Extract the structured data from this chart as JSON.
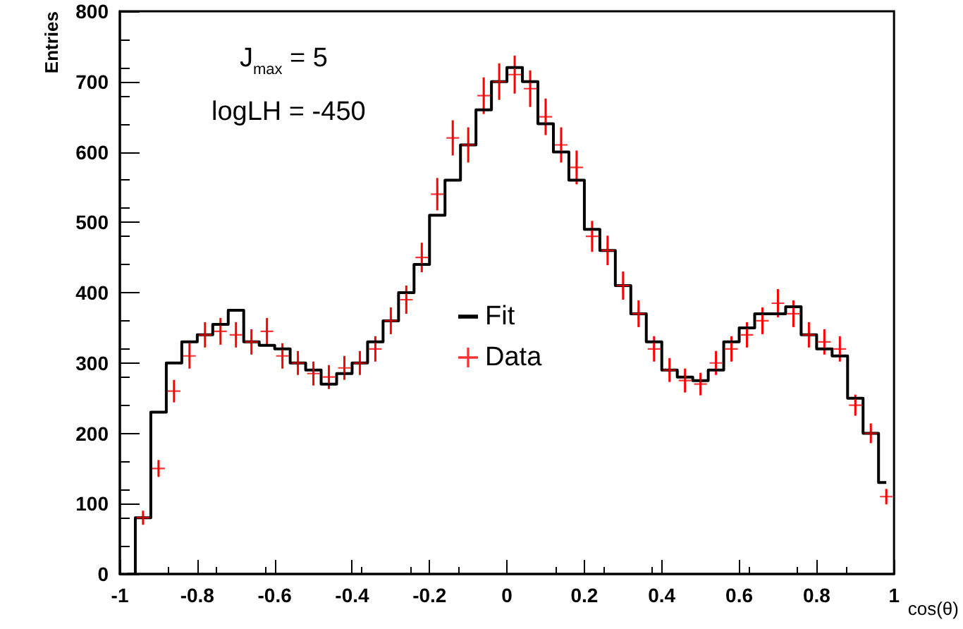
{
  "chart_data": {
    "type": "step",
    "xlabel": "cos(θ)",
    "ylabel": "Entries",
    "annotations": [
      "J$_{max}$ = 5",
      "logLH = -450"
    ],
    "x": [
      -0.98,
      -0.94,
      -0.9,
      -0.86,
      -0.82,
      -0.78,
      -0.74,
      -0.7,
      -0.66,
      -0.62,
      -0.58,
      -0.54,
      -0.5,
      -0.46,
      -0.42,
      -0.38,
      -0.34,
      -0.3,
      -0.26,
      -0.22,
      -0.18,
      -0.14,
      -0.1,
      -0.06,
      -0.02,
      0.02,
      0.06,
      0.1,
      0.14,
      0.18,
      0.22,
      0.26,
      0.3,
      0.34,
      0.38,
      0.42,
      0.46,
      0.5,
      0.54,
      0.58,
      0.62,
      0.66,
      0.7,
      0.74,
      0.78,
      0.82,
      0.86,
      0.9,
      0.94,
      0.98
    ],
    "series": [
      {
        "name": "Fit",
        "color": "#000000",
        "values": [
          0,
          80,
          230,
          300,
          330,
          340,
          355,
          375,
          330,
          325,
          320,
          300,
          290,
          270,
          285,
          300,
          330,
          360,
          400,
          440,
          510,
          560,
          610,
          660,
          700,
          720,
          700,
          640,
          600,
          560,
          490,
          460,
          410,
          370,
          330,
          290,
          280,
          275,
          290,
          330,
          350,
          370,
          370,
          380,
          340,
          320,
          310,
          250,
          200,
          130
        ]
      },
      {
        "name": "Data",
        "type": "scatter",
        "marker": "cross",
        "color": "#ff0000",
        "values": [
          null,
          80,
          150,
          260,
          310,
          340,
          345,
          340,
          330,
          345,
          310,
          300,
          285,
          280,
          293,
          300,
          320,
          360,
          390,
          450,
          540,
          620,
          610,
          680,
          700,
          710,
          690,
          650,
          610,
          578,
          480,
          460,
          410,
          370,
          320,
          290,
          275,
          270,
          300,
          320,
          340,
          360,
          385,
          370,
          340,
          330,
          320,
          240,
          200,
          110
        ],
        "errors": [
          null,
          10,
          12,
          16,
          18,
          18,
          19,
          18,
          18,
          19,
          18,
          17,
          17,
          17,
          17,
          17,
          18,
          19,
          20,
          21,
          23,
          25,
          25,
          26,
          26,
          27,
          26,
          26,
          25,
          24,
          22,
          21,
          20,
          19,
          18,
          17,
          17,
          16,
          17,
          18,
          18,
          19,
          20,
          19,
          18,
          18,
          18,
          15,
          14,
          11
        ]
      }
    ],
    "xlim": [
      -1,
      1
    ],
    "ylim": [
      0,
      800
    ],
    "xticks": [
      -1,
      -0.8,
      -0.6,
      -0.4,
      -0.2,
      0,
      0.2,
      0.4,
      0.6,
      0.8,
      1
    ],
    "yticks": [
      0,
      100,
      200,
      300,
      400,
      500,
      600,
      700,
      800
    ],
    "grid": false,
    "legend": "center"
  }
}
